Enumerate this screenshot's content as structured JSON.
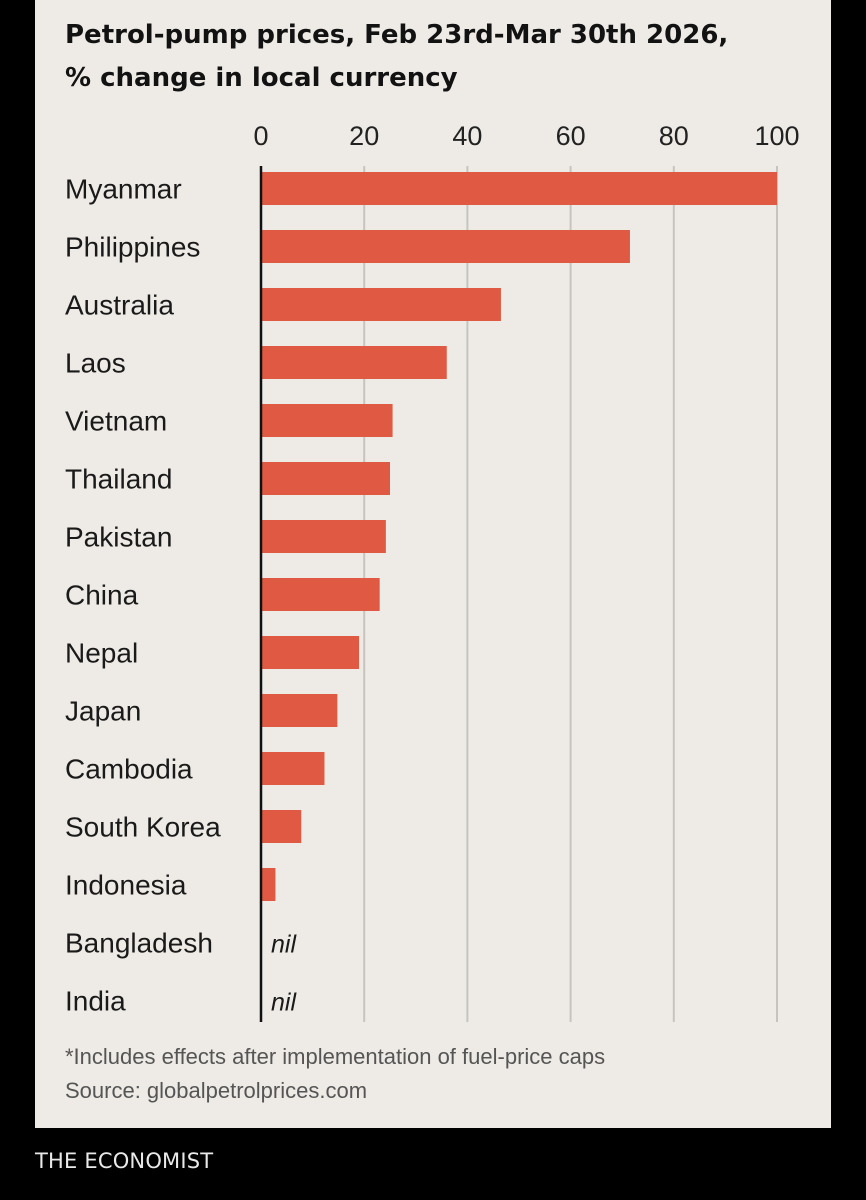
{
  "colors": {
    "page_background": "#000000",
    "chart_background": "#eeebe6",
    "bar": "#e05a43",
    "gridline": "#c7c4bf",
    "axis_line": "#111111",
    "brand_text": "#e9e9e9"
  },
  "chart_data": {
    "type": "bar",
    "orientation": "horizontal",
    "title": [
      "Petrol-pump prices, Feb 23rd-Mar 30th 2026,",
      "% change in local currency"
    ],
    "xlabel": "",
    "ylabel": "",
    "xlim": [
      0,
      100
    ],
    "xticks": [
      0,
      20,
      40,
      60,
      80,
      100
    ],
    "tick_position": "top",
    "grid": true,
    "categories": [
      "Myanmar",
      "Philippines",
      "Australia",
      "Laos",
      "Vietnam",
      "Thailand",
      "Pakistan",
      "China",
      "Nepal",
      "Japan",
      "Cambodia",
      "South Korea",
      "Indonesia",
      "Bangladesh",
      "India"
    ],
    "values": [
      100,
      71.5,
      46.5,
      36,
      25.5,
      25,
      24.2,
      23,
      19,
      14.8,
      12.3,
      7.8,
      2.8,
      0,
      0
    ],
    "value_labels": [
      "",
      "",
      "",
      "",
      "",
      "",
      "",
      "",
      "",
      "",
      "",
      "",
      "",
      "nil",
      "nil"
    ]
  },
  "footnotes": {
    "note": "*Includes effects after implementation of fuel-price caps",
    "source": "Source: globalpetrolprices.com"
  },
  "brand": "THE ECONOMIST"
}
